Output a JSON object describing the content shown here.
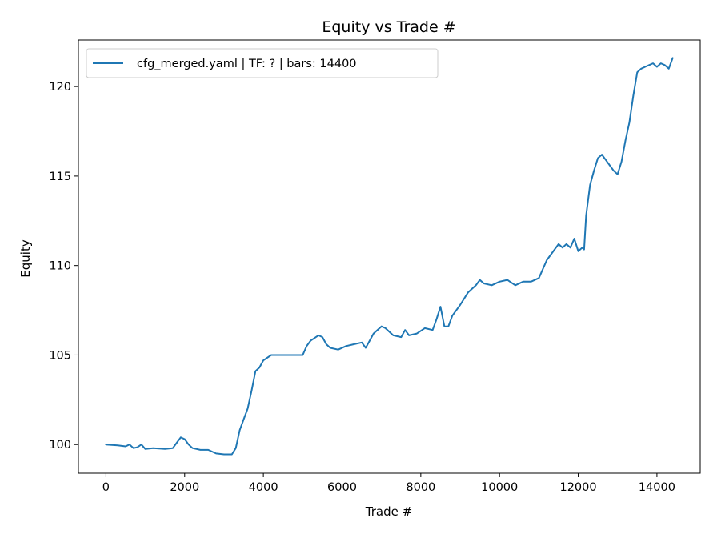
{
  "chart_data": {
    "type": "line",
    "title": "Equity vs Trade #",
    "xlabel": "Trade #",
    "ylabel": "Equity",
    "xlim": [
      -700,
      15100
    ],
    "ylim": [
      98.4,
      122.6
    ],
    "xticks": [
      0,
      2000,
      4000,
      6000,
      8000,
      10000,
      12000,
      14000
    ],
    "yticks": [
      100,
      105,
      110,
      115,
      120
    ],
    "grid": false,
    "legend": {
      "placement": "top-left"
    },
    "series": [
      {
        "name": "cfg_merged.yaml | TF: ? | bars: 14400",
        "color": "#1f77b4",
        "points": [
          [
            0,
            100.0
          ],
          [
            300,
            99.95
          ],
          [
            500,
            99.9
          ],
          [
            600,
            100.0
          ],
          [
            700,
            99.8
          ],
          [
            800,
            99.85
          ],
          [
            900,
            100.0
          ],
          [
            1000,
            99.75
          ],
          [
            1200,
            99.8
          ],
          [
            1500,
            99.75
          ],
          [
            1700,
            99.8
          ],
          [
            1800,
            100.1
          ],
          [
            1900,
            100.4
          ],
          [
            2000,
            100.3
          ],
          [
            2100,
            100.0
          ],
          [
            2200,
            99.8
          ],
          [
            2400,
            99.7
          ],
          [
            2600,
            99.7
          ],
          [
            2800,
            99.5
          ],
          [
            3000,
            99.45
          ],
          [
            3200,
            99.45
          ],
          [
            3300,
            99.8
          ],
          [
            3400,
            100.8
          ],
          [
            3500,
            101.4
          ],
          [
            3600,
            102.0
          ],
          [
            3700,
            103.0
          ],
          [
            3800,
            104.1
          ],
          [
            3900,
            104.3
          ],
          [
            4000,
            104.7
          ],
          [
            4200,
            105.0
          ],
          [
            4400,
            105.0
          ],
          [
            4600,
            105.0
          ],
          [
            4800,
            105.0
          ],
          [
            5000,
            105.0
          ],
          [
            5100,
            105.5
          ],
          [
            5200,
            105.8
          ],
          [
            5400,
            106.1
          ],
          [
            5500,
            106.0
          ],
          [
            5600,
            105.6
          ],
          [
            5700,
            105.4
          ],
          [
            5900,
            105.3
          ],
          [
            6100,
            105.5
          ],
          [
            6300,
            105.6
          ],
          [
            6500,
            105.7
          ],
          [
            6600,
            105.4
          ],
          [
            6700,
            105.8
          ],
          [
            6800,
            106.2
          ],
          [
            7000,
            106.6
          ],
          [
            7100,
            106.5
          ],
          [
            7300,
            106.1
          ],
          [
            7500,
            106.0
          ],
          [
            7600,
            106.4
          ],
          [
            7700,
            106.1
          ],
          [
            7900,
            106.2
          ],
          [
            8100,
            106.5
          ],
          [
            8300,
            106.4
          ],
          [
            8400,
            107.0
          ],
          [
            8500,
            107.7
          ],
          [
            8600,
            106.6
          ],
          [
            8700,
            106.6
          ],
          [
            8800,
            107.2
          ],
          [
            9000,
            107.8
          ],
          [
            9200,
            108.5
          ],
          [
            9400,
            108.9
          ],
          [
            9500,
            109.2
          ],
          [
            9600,
            109.0
          ],
          [
            9800,
            108.9
          ],
          [
            10000,
            109.1
          ],
          [
            10200,
            109.2
          ],
          [
            10400,
            108.9
          ],
          [
            10600,
            109.1
          ],
          [
            10800,
            109.1
          ],
          [
            11000,
            109.3
          ],
          [
            11200,
            110.3
          ],
          [
            11400,
            110.9
          ],
          [
            11500,
            111.2
          ],
          [
            11600,
            111.0
          ],
          [
            11700,
            111.2
          ],
          [
            11800,
            111.0
          ],
          [
            11900,
            111.5
          ],
          [
            12000,
            110.8
          ],
          [
            12100,
            111.0
          ],
          [
            12150,
            110.9
          ],
          [
            12200,
            112.8
          ],
          [
            12300,
            114.5
          ],
          [
            12400,
            115.3
          ],
          [
            12500,
            116.0
          ],
          [
            12600,
            116.2
          ],
          [
            12700,
            115.9
          ],
          [
            12800,
            115.6
          ],
          [
            12900,
            115.3
          ],
          [
            13000,
            115.1
          ],
          [
            13100,
            115.8
          ],
          [
            13200,
            117.0
          ],
          [
            13300,
            118.0
          ],
          [
            13400,
            119.5
          ],
          [
            13500,
            120.8
          ],
          [
            13600,
            121.0
          ],
          [
            13700,
            121.1
          ],
          [
            13800,
            121.2
          ],
          [
            13900,
            121.3
          ],
          [
            14000,
            121.1
          ],
          [
            14100,
            121.3
          ],
          [
            14200,
            121.2
          ],
          [
            14300,
            121.0
          ],
          [
            14400,
            121.6
          ]
        ]
      }
    ]
  }
}
